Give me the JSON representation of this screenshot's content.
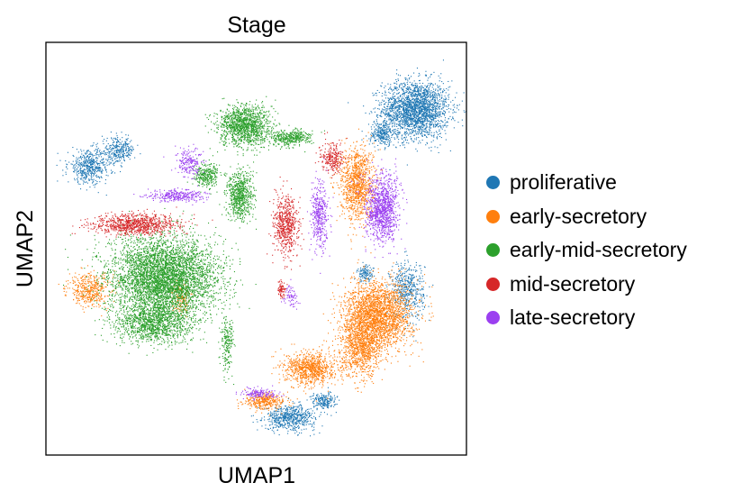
{
  "chart_data": {
    "type": "scatter",
    "title": "Stage",
    "xlabel": "UMAP1",
    "ylabel": "UMAP2",
    "x_ticks": [],
    "y_ticks": [],
    "xlim": [
      0,
      100
    ],
    "ylim": [
      0,
      100
    ],
    "grid": false,
    "legend_position": "right",
    "legend": [
      {
        "name": "proliferative",
        "color": "#1f77b4"
      },
      {
        "name": "early-secretory",
        "color": "#ff7f0e"
      },
      {
        "name": "early-mid-secretory",
        "color": "#2ca02c"
      },
      {
        "name": "mid-secretory",
        "color": "#d62728"
      },
      {
        "name": "late-secretory",
        "color": "#9b3ff0"
      }
    ],
    "series": [
      {
        "name": "proliferative",
        "color": "#1f77b4",
        "clusters": [
          {
            "x": 88,
            "y": 84,
            "rx": 8,
            "ry": 7,
            "n": 2200
          },
          {
            "x": 80,
            "y": 78,
            "rx": 3,
            "ry": 3,
            "n": 250
          },
          {
            "x": 10,
            "y": 70,
            "rx": 5,
            "ry": 4,
            "n": 500
          },
          {
            "x": 17,
            "y": 74,
            "rx": 4,
            "ry": 3,
            "n": 300
          },
          {
            "x": 86,
            "y": 40,
            "rx": 4,
            "ry": 7,
            "n": 500
          },
          {
            "x": 76,
            "y": 44,
            "rx": 2,
            "ry": 2,
            "n": 120
          },
          {
            "x": 58,
            "y": 9,
            "rx": 6,
            "ry": 3,
            "n": 600
          },
          {
            "x": 66,
            "y": 13,
            "rx": 3,
            "ry": 2,
            "n": 200
          }
        ]
      },
      {
        "name": "early-secretory",
        "color": "#ff7f0e",
        "clusters": [
          {
            "x": 74,
            "y": 66,
            "rx": 4,
            "ry": 9,
            "n": 1100
          },
          {
            "x": 79,
            "y": 34,
            "rx": 8,
            "ry": 8,
            "n": 2400
          },
          {
            "x": 75,
            "y": 26,
            "rx": 5,
            "ry": 7,
            "n": 1000
          },
          {
            "x": 63,
            "y": 21,
            "rx": 6,
            "ry": 4,
            "n": 900
          },
          {
            "x": 52,
            "y": 13,
            "rx": 5,
            "ry": 2,
            "n": 350
          },
          {
            "x": 10,
            "y": 40,
            "rx": 5,
            "ry": 4,
            "n": 450
          },
          {
            "x": 32,
            "y": 38,
            "rx": 2,
            "ry": 4,
            "n": 150
          }
        ]
      },
      {
        "name": "early-mid-secretory",
        "color": "#2ca02c",
        "clusters": [
          {
            "x": 28,
            "y": 43,
            "rx": 13,
            "ry": 10,
            "n": 4600
          },
          {
            "x": 25,
            "y": 32,
            "rx": 9,
            "ry": 5,
            "n": 1200
          },
          {
            "x": 47,
            "y": 80,
            "rx": 6,
            "ry": 5,
            "n": 1300
          },
          {
            "x": 58,
            "y": 77,
            "rx": 5,
            "ry": 2,
            "n": 400
          },
          {
            "x": 46,
            "y": 63,
            "rx": 3,
            "ry": 6,
            "n": 700
          },
          {
            "x": 38,
            "y": 68,
            "rx": 3,
            "ry": 3,
            "n": 300
          },
          {
            "x": 43,
            "y": 27,
            "rx": 1.5,
            "ry": 7,
            "n": 200
          }
        ]
      },
      {
        "name": "mid-secretory",
        "color": "#d62728",
        "clusters": [
          {
            "x": 21,
            "y": 56,
            "rx": 10,
            "ry": 2.5,
            "n": 900
          },
          {
            "x": 57,
            "y": 56,
            "rx": 3,
            "ry": 7,
            "n": 600
          },
          {
            "x": 68,
            "y": 72,
            "rx": 2.5,
            "ry": 4,
            "n": 250
          },
          {
            "x": 56,
            "y": 40,
            "rx": 1,
            "ry": 2,
            "n": 80
          }
        ]
      },
      {
        "name": "late-secretory",
        "color": "#9b3ff0",
        "clusters": [
          {
            "x": 80,
            "y": 60,
            "rx": 4,
            "ry": 8,
            "n": 1100
          },
          {
            "x": 65,
            "y": 58,
            "rx": 2,
            "ry": 8,
            "n": 400
          },
          {
            "x": 31,
            "y": 63,
            "rx": 7,
            "ry": 1.5,
            "n": 300
          },
          {
            "x": 34,
            "y": 71,
            "rx": 3,
            "ry": 4,
            "n": 200
          },
          {
            "x": 51,
            "y": 15,
            "rx": 4,
            "ry": 1.5,
            "n": 150
          },
          {
            "x": 58,
            "y": 38,
            "rx": 1.5,
            "ry": 3,
            "n": 70
          }
        ]
      }
    ]
  }
}
